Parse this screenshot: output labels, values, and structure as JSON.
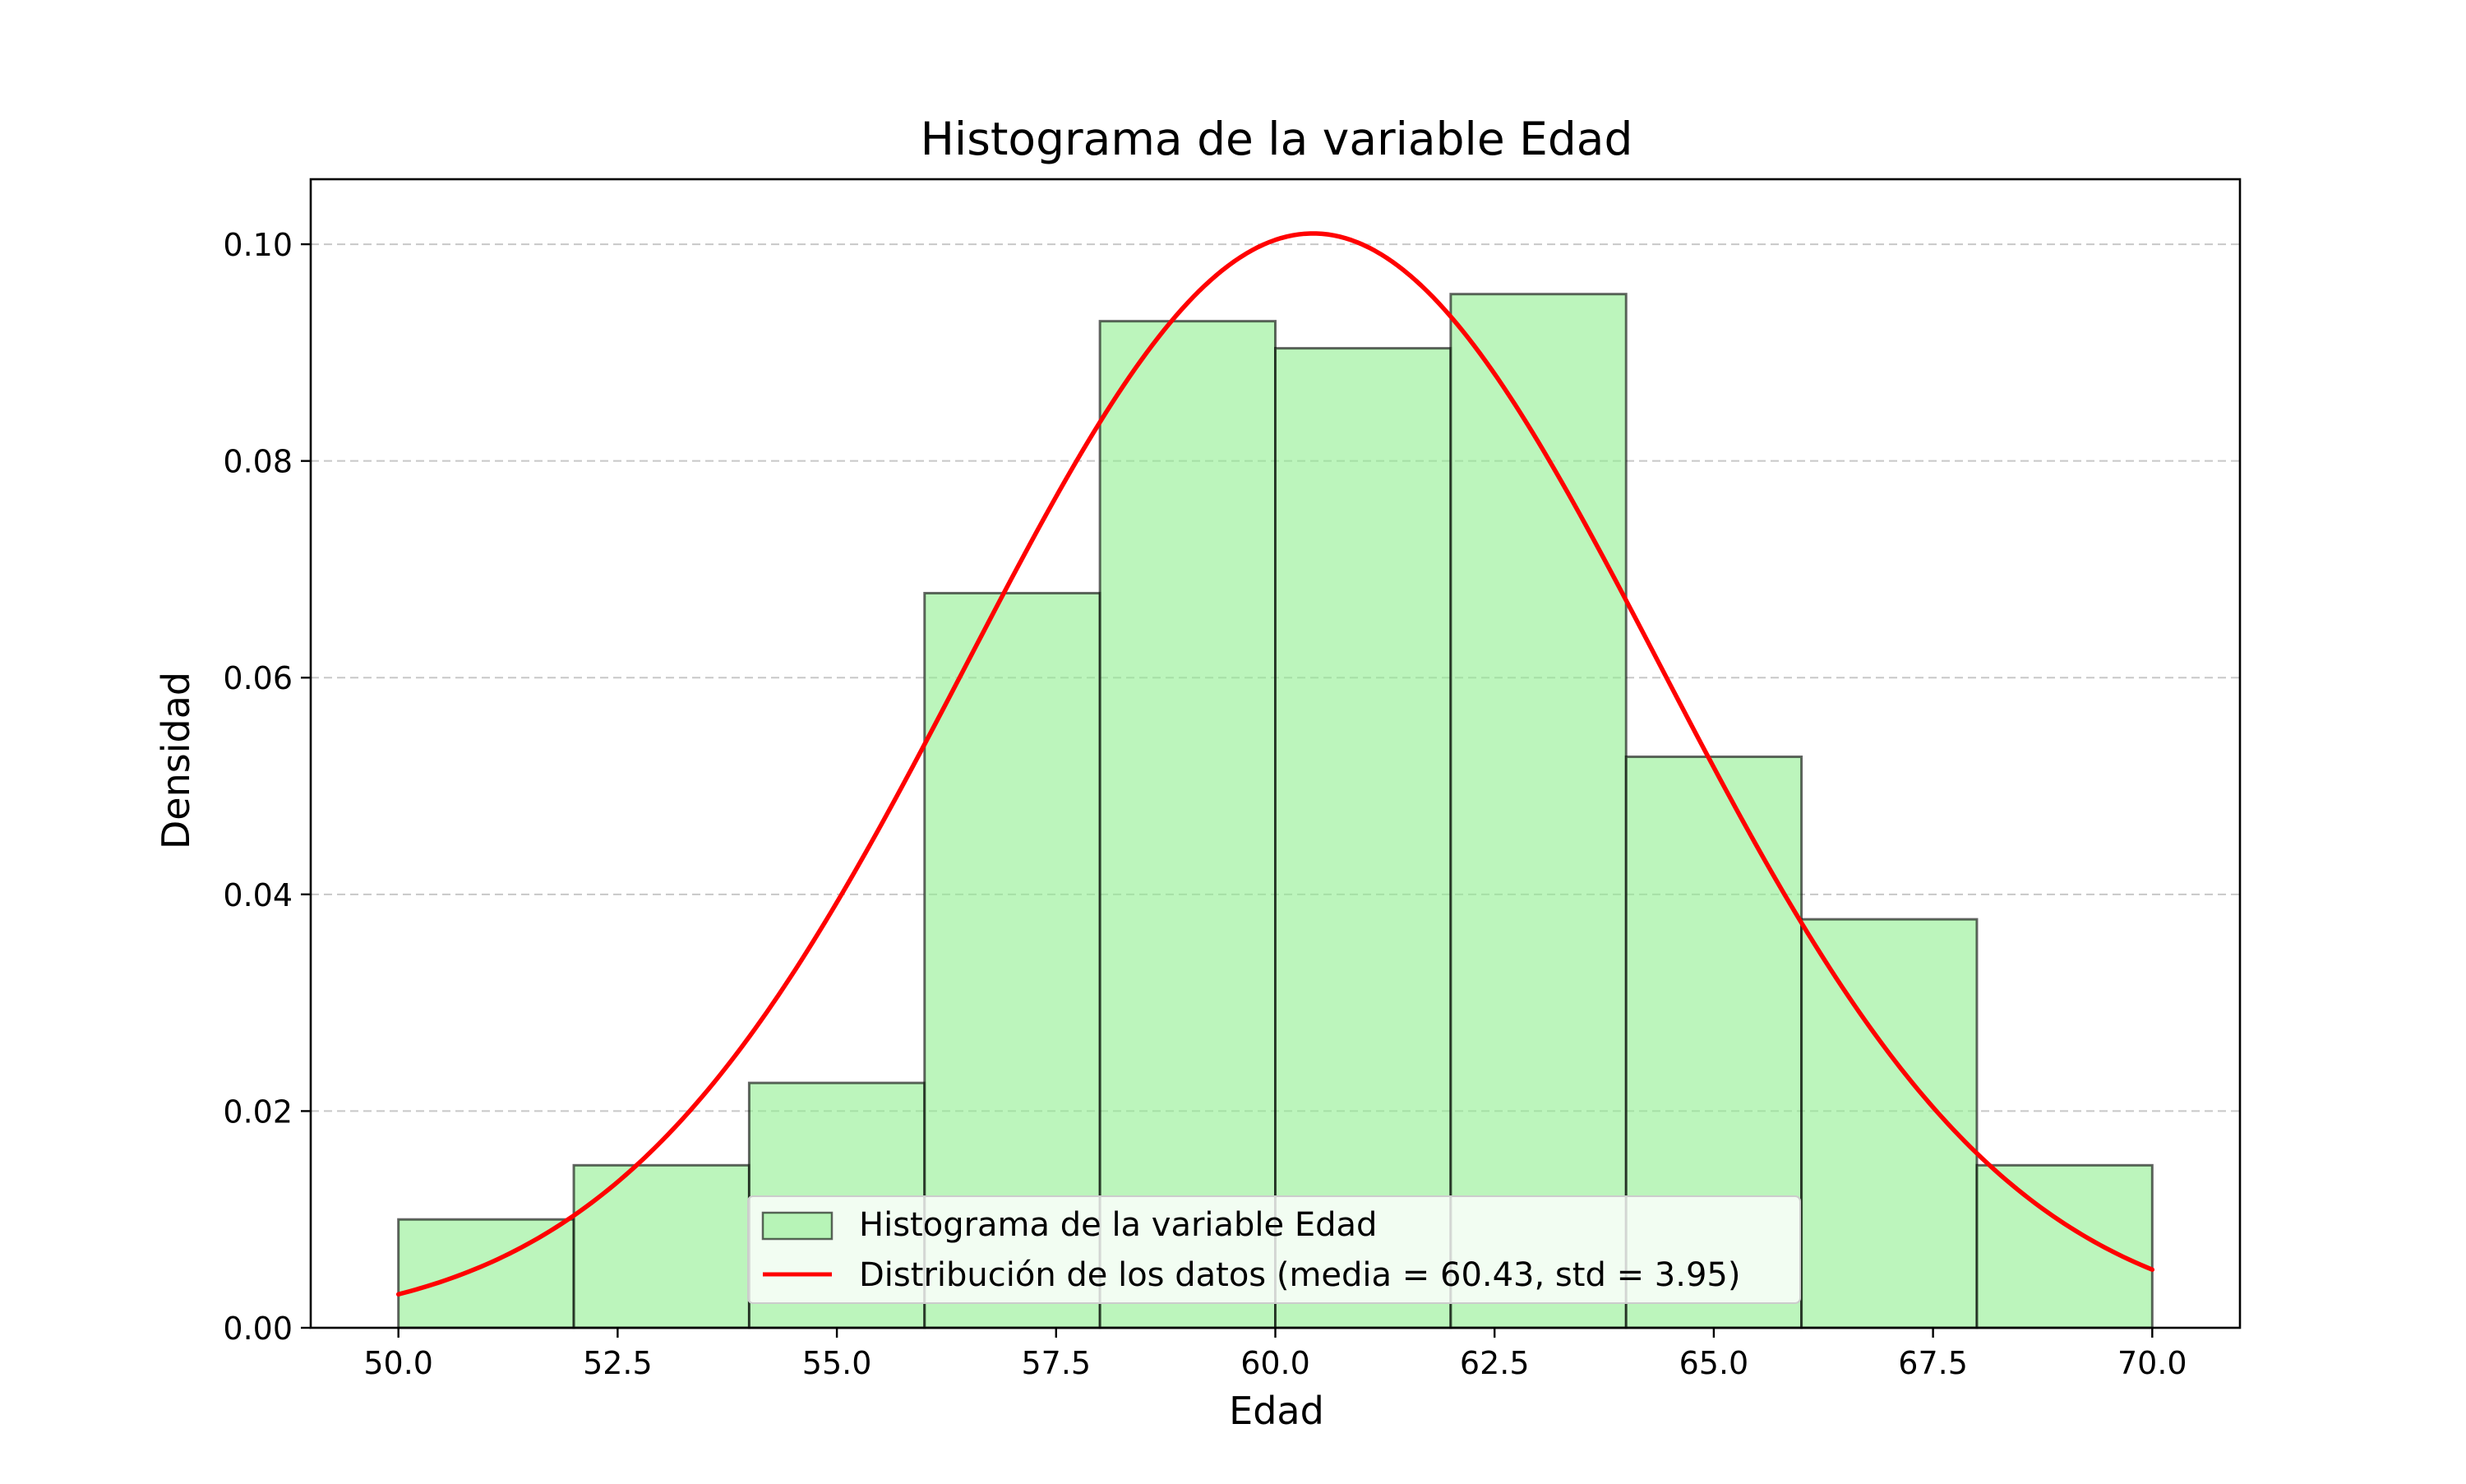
{
  "chart_data": {
    "type": "bar",
    "title": "Histograma de la variable Edad",
    "xlabel": "Edad",
    "ylabel": "Densidad",
    "xlim": [
      49.0,
      71.0
    ],
    "ylim": [
      0.0,
      0.106
    ],
    "xticks": [
      50.0,
      52.5,
      55.0,
      57.5,
      60.0,
      62.5,
      65.0,
      67.5,
      70.0
    ],
    "xtick_labels": [
      "50.0",
      "52.5",
      "55.0",
      "57.5",
      "60.0",
      "62.5",
      "65.0",
      "67.5",
      "70.0"
    ],
    "yticks": [
      0.0,
      0.02,
      0.04,
      0.06,
      0.08,
      0.1
    ],
    "ytick_labels": [
      "0.00",
      "0.02",
      "0.04",
      "0.06",
      "0.08",
      "0.10"
    ],
    "grid": "y dashed",
    "legend_position": "lower center",
    "series": [
      {
        "name": "Histograma de la variable Edad",
        "kind": "histogram",
        "color": "#90ee90",
        "edge_color": "#000000",
        "bins": [
          {
            "start": 50,
            "end": 52,
            "density": 0.01
          },
          {
            "start": 52,
            "end": 54,
            "density": 0.015
          },
          {
            "start": 54,
            "end": 56,
            "density": 0.0226
          },
          {
            "start": 56,
            "end": 58,
            "density": 0.0678
          },
          {
            "start": 58,
            "end": 60,
            "density": 0.0929
          },
          {
            "start": 60,
            "end": 62,
            "density": 0.0904
          },
          {
            "start": 62,
            "end": 64,
            "density": 0.0954
          },
          {
            "start": 64,
            "end": 66,
            "density": 0.0527
          },
          {
            "start": 66,
            "end": 68,
            "density": 0.0377
          },
          {
            "start": 68,
            "end": 70,
            "density": 0.015
          }
        ]
      },
      {
        "name": "Distribución de los datos (media = 60.43, std = 3.95)",
        "kind": "normal-pdf",
        "color": "#ff0000",
        "mean": 60.43,
        "std": 3.95,
        "x_range": [
          50.0,
          70.0
        ]
      }
    ]
  }
}
